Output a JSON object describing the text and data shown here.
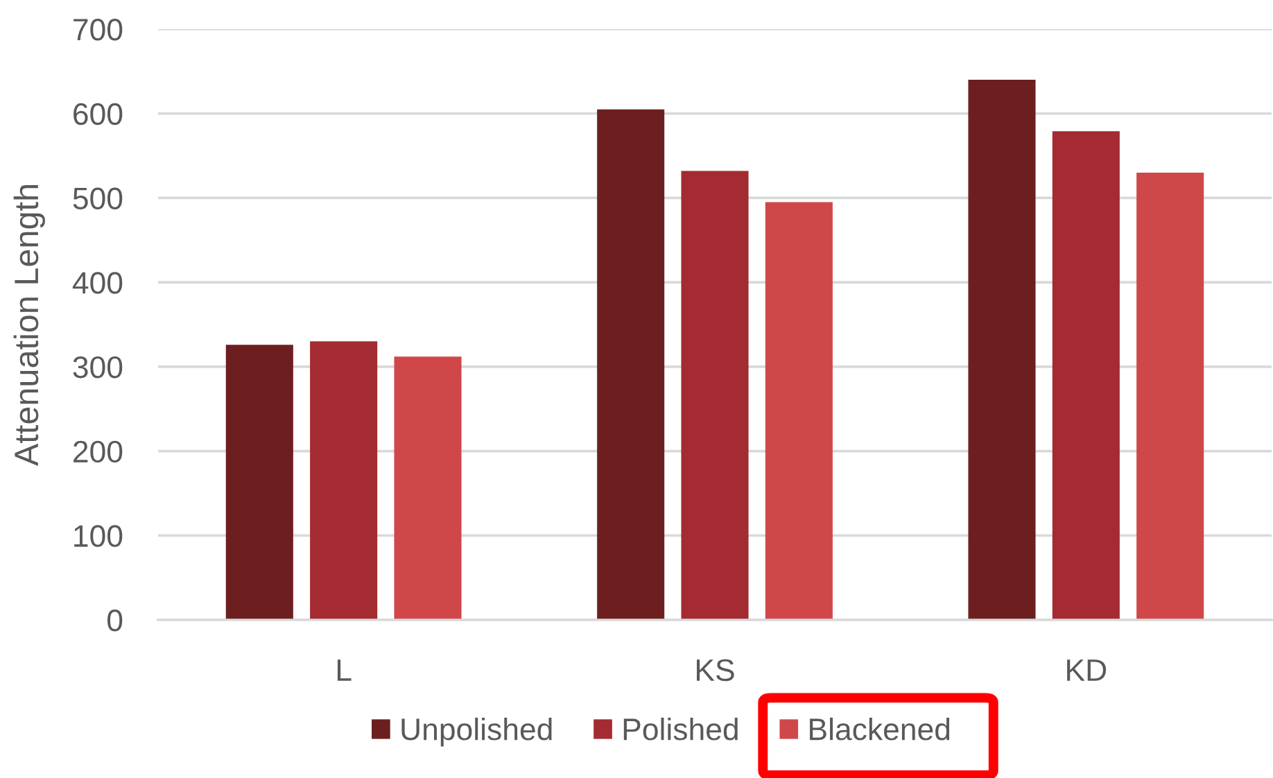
{
  "chart_data": {
    "type": "bar",
    "ylabel": "Attenuation Length",
    "categories": [
      "L",
      "KS",
      "KD"
    ],
    "series": [
      {
        "name": "Unpolished",
        "color": "#6d1f20",
        "values": [
          326,
          605,
          640
        ]
      },
      {
        "name": "Polished",
        "color": "#a42b31",
        "values": [
          330,
          532,
          579
        ]
      },
      {
        "name": "Blackened",
        "color": "#d0474a",
        "values": [
          312,
          495,
          530
        ]
      }
    ],
    "ylim": [
      0,
      700
    ],
    "yticks": [
      0,
      100,
      200,
      300,
      400,
      500,
      600,
      700
    ],
    "grid": "y",
    "legend": "bottom"
  }
}
